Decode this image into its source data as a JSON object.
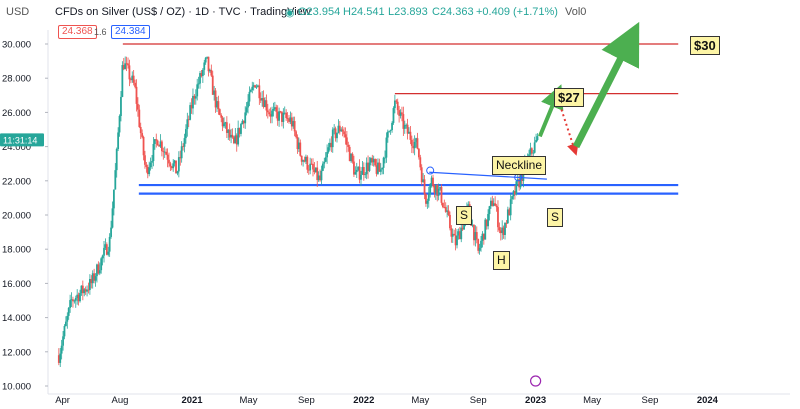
{
  "header": {
    "currency": "USD",
    "title": "CFDs on Silver (US$ / OZ) · 1D · TVC · TradingView",
    "ohlc": {
      "o": "O23.954",
      "h": "H24.541",
      "l": "L23.893",
      "c": "C24.363",
      "chg": "+0.409 (+1.71%)",
      "vol": "Vol0"
    },
    "bid": "24.368",
    "spread": "1.6",
    "ask": "24.384",
    "last_price_time": "11:31:14"
  },
  "colors": {
    "up": "#26a69a",
    "down": "#ef5350",
    "channel": "#2962ff",
    "resistance": "#d32f2f",
    "arrow_green": "#4caf50",
    "arrow_red": "#e53935",
    "note_bg": "#fdf5a6"
  },
  "annotations": {
    "t30": "$30",
    "t27": "$27",
    "neckline": "Neckline",
    "s1": "S",
    "h": "H",
    "s2": "S"
  },
  "chart_data": {
    "type": "candlestick",
    "title": "CFDs on Silver (US$ / OZ) · 1D · TVC · TradingView",
    "ylim": [
      10,
      30.6
    ],
    "y_ticks": [
      "10.000",
      "12.000",
      "14.000",
      "16.000",
      "18.000",
      "20.000",
      "22.000",
      "24.000",
      "26.000",
      "28.000",
      "30.000"
    ],
    "x_ticks": [
      "Apr",
      "Aug",
      "2021",
      "May",
      "Sep",
      "2022",
      "May",
      "Sep",
      "2023",
      "May",
      "Sep",
      "2024"
    ],
    "price_path": [
      [
        "2020-03-24",
        11.8
      ],
      [
        "2020-04-20",
        15.0
      ],
      [
        "2020-06-01",
        16.0
      ],
      [
        "2020-07-10",
        18.5
      ],
      [
        "2020-07-25",
        23.5
      ],
      [
        "2020-08-07",
        29.0
      ],
      [
        "2020-09-01",
        27.5
      ],
      [
        "2020-09-25",
        22.5
      ],
      [
        "2020-10-20",
        24.5
      ],
      [
        "2020-11-30",
        22.5
      ],
      [
        "2021-01-05",
        27.0
      ],
      [
        "2021-02-01",
        29.0
      ],
      [
        "2021-02-25",
        26.0
      ],
      [
        "2021-03-31",
        24.0
      ],
      [
        "2021-05-15",
        27.8
      ],
      [
        "2021-06-15",
        26.0
      ],
      [
        "2021-07-31",
        25.5
      ],
      [
        "2021-08-20",
        23.5
      ],
      [
        "2021-09-30",
        22.0
      ],
      [
        "2021-10-25",
        24.5
      ],
      [
        "2021-11-15",
        25.2
      ],
      [
        "2021-12-15",
        22.3
      ],
      [
        "2022-01-15",
        23.0
      ],
      [
        "2022-02-05",
        22.5
      ],
      [
        "2022-03-08",
        26.5
      ],
      [
        "2022-03-30",
        25.0
      ],
      [
        "2022-04-25",
        24.0
      ],
      [
        "2022-05-12",
        20.9
      ],
      [
        "2022-05-25",
        22.0
      ],
      [
        "2022-06-13",
        21.2
      ],
      [
        "2022-07-14",
        18.3
      ],
      [
        "2022-08-12",
        20.4
      ],
      [
        "2022-09-01",
        17.8
      ],
      [
        "2022-10-03",
        21.0
      ],
      [
        "2022-10-20",
        18.8
      ],
      [
        "2022-11-20",
        21.5
      ],
      [
        "2022-12-20",
        23.5
      ],
      [
        "2023-01-05",
        24.4
      ]
    ],
    "last_price": 24.363,
    "horizontal_levels": [
      {
        "kind": "resistance",
        "y": 30.0,
        "from": "2020-08-07",
        "to": "2023-10-31",
        "label": "$30"
      },
      {
        "kind": "resistance",
        "y": 27.1,
        "from": "2022-03-08",
        "to": "2023-10-31",
        "label": "$27"
      },
      {
        "kind": "channel_top",
        "y": 21.75,
        "from": "2020-09-10",
        "to": "2023-10-31"
      },
      {
        "kind": "channel_bottom",
        "y": 21.25,
        "from": "2020-09-10",
        "to": "2023-10-31"
      }
    ],
    "neckline": {
      "from": [
        "2022-05-20",
        22.5
      ],
      "to": [
        "2023-01-25",
        22.1
      ],
      "label": "Neckline"
    },
    "pattern_labels": [
      {
        "label": "S",
        "x": "2022-05-12",
        "y": 20.2
      },
      {
        "label": "H",
        "x": "2022-08-25",
        "y": 17.2
      },
      {
        "label": "S",
        "x": "2022-11-15",
        "y": 19.9
      }
    ],
    "projection": [
      {
        "kind": "up",
        "from": [
          "2023-01-10",
          24.6
        ],
        "to": [
          "2023-02-15",
          27.0
        ],
        "color": "green"
      },
      {
        "kind": "down",
        "from": [
          "2023-02-15",
          27.0
        ],
        "to": [
          "2023-03-25",
          23.8
        ],
        "color": "red",
        "style": "dotted"
      },
      {
        "kind": "up",
        "from": [
          "2023-03-28",
          24.0
        ],
        "to": [
          "2023-07-20",
          30.2
        ],
        "color": "green"
      }
    ]
  }
}
